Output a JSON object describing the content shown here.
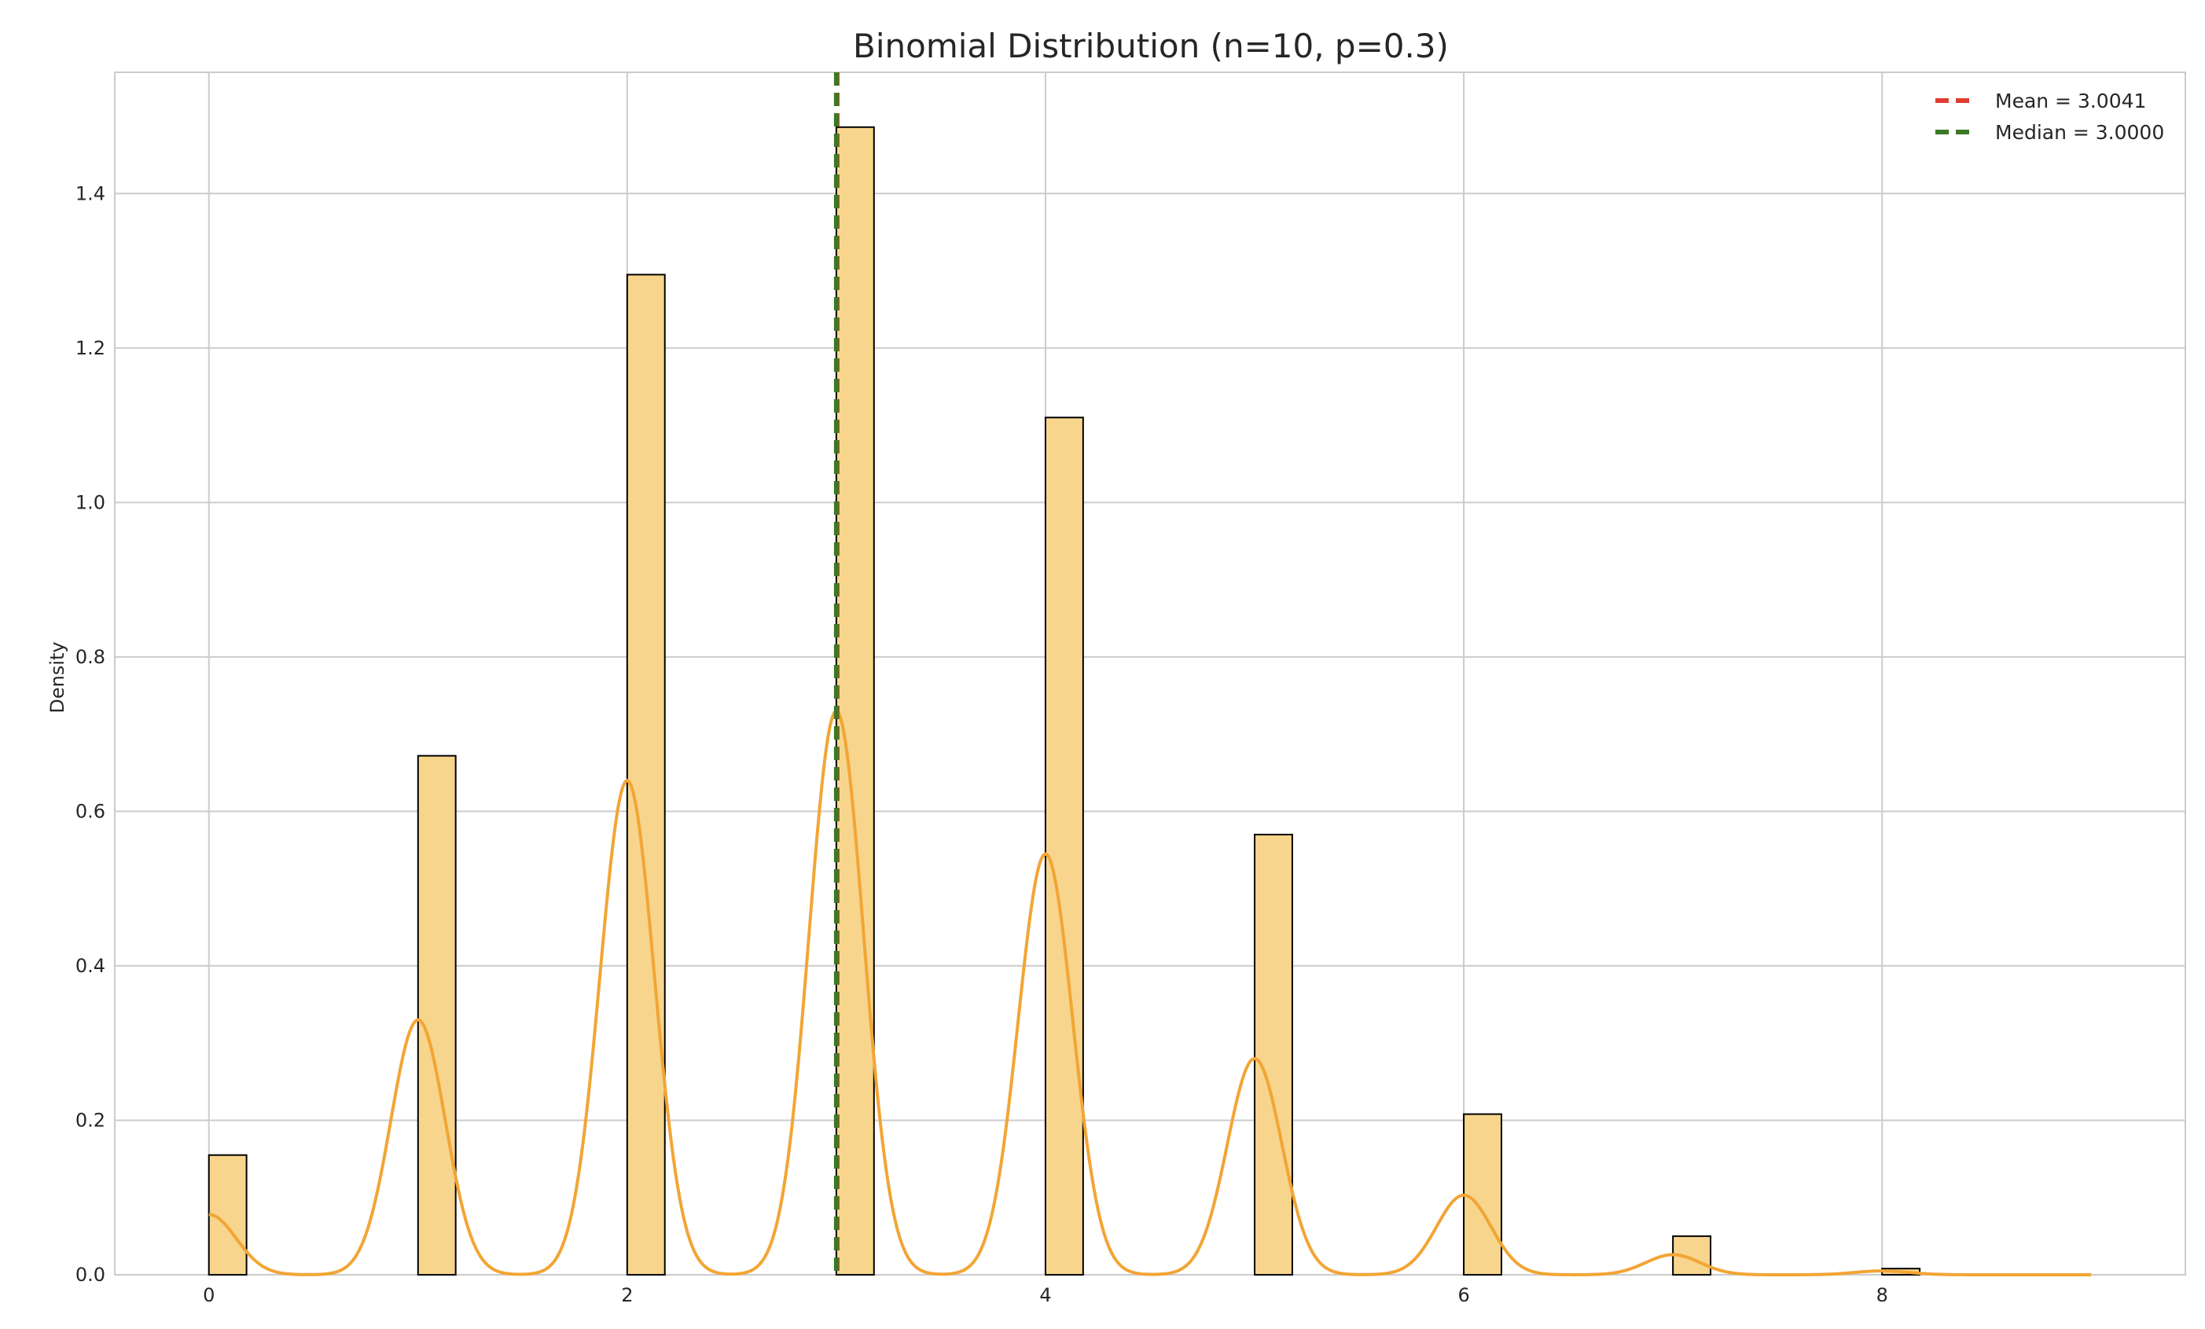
{
  "chart_data": {
    "type": "bar",
    "title": "Binomial Distribution (n=10, p=0.3)",
    "xlabel": "",
    "ylabel": "Density",
    "xlim": [
      -0.45,
      9.45
    ],
    "ylim": [
      0,
      1.557
    ],
    "xticks": [
      0,
      2,
      4,
      6,
      8
    ],
    "yticks": [
      0.0,
      0.2,
      0.4,
      0.6,
      0.8,
      1.0,
      1.2,
      1.4
    ],
    "grid": true,
    "legend_position": "top-right",
    "colors": {
      "bar_fill": "#f7d58c",
      "bar_edge": "#000000",
      "kde": "#f2a535",
      "mean": "#e03c31",
      "median": "#3a7a24"
    },
    "histogram": {
      "bin_width": 0.18,
      "x": [
        0,
        1,
        2,
        3,
        4,
        5,
        6,
        7,
        8
      ],
      "values": [
        0.155,
        0.672,
        1.295,
        1.486,
        1.11,
        0.57,
        0.208,
        0.05,
        0.008
      ]
    },
    "kde": {
      "name": "",
      "peaks": [
        {
          "x": 0,
          "y": 0.078
        },
        {
          "x": 1,
          "y": 0.33
        },
        {
          "x": 2,
          "y": 0.64
        },
        {
          "x": 3,
          "y": 0.73
        },
        {
          "x": 4,
          "y": 0.545
        },
        {
          "x": 5,
          "y": 0.28
        },
        {
          "x": 6,
          "y": 0.103
        },
        {
          "x": 7,
          "y": 0.026
        },
        {
          "x": 8,
          "y": 0.005
        }
      ],
      "sigma": 0.13,
      "x_range": [
        0,
        9
      ]
    },
    "reference_lines": [
      {
        "name": "Mean = 3.0041",
        "x": 3.0041
      },
      {
        "name": "Median = 3.0000",
        "x": 3.0
      }
    ]
  }
}
